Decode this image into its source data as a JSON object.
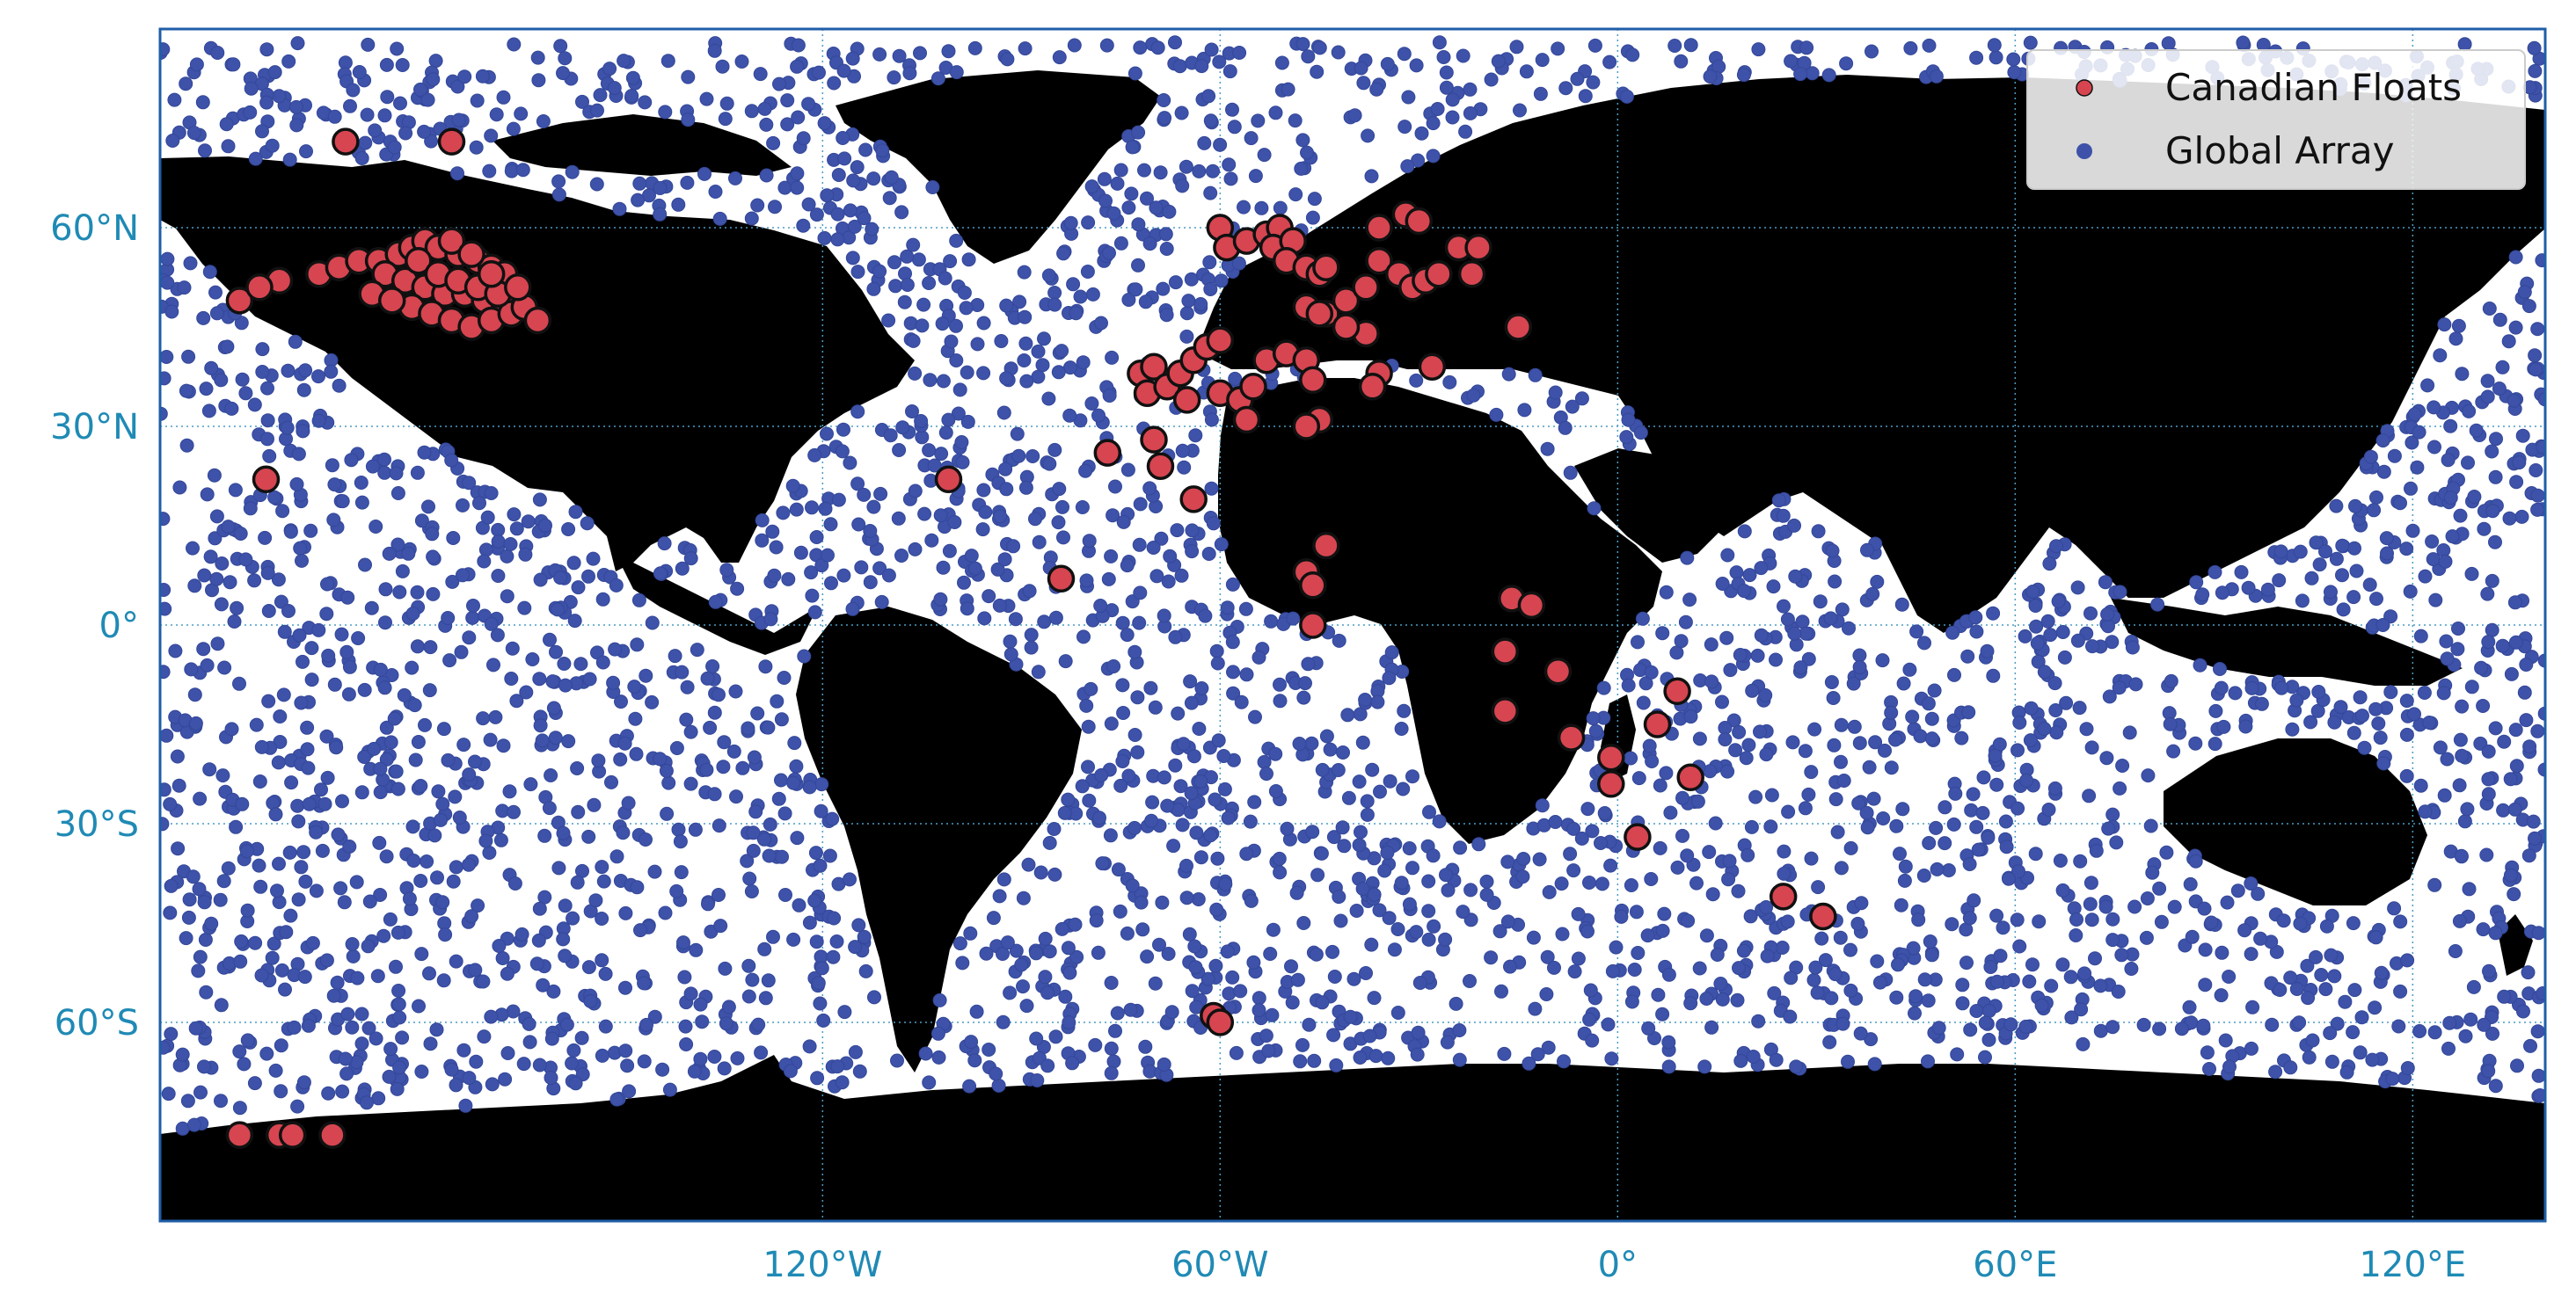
{
  "chart_data": {
    "type": "scatter",
    "projection": "plate-carree",
    "xlim": [
      -220,
      140
    ],
    "ylim": [
      -90,
      90
    ],
    "grid": true,
    "legend_position": "top-right",
    "x_tick_labels": [
      {
        "lon": -120,
        "label": "120°W"
      },
      {
        "lon": -60,
        "label": "60°W"
      },
      {
        "lon": 0,
        "label": "0°"
      },
      {
        "lon": 60,
        "label": "60°E"
      },
      {
        "lon": 120,
        "label": "120°E"
      }
    ],
    "y_tick_labels": [
      {
        "lat": 60,
        "label": "60°N"
      },
      {
        "lat": 30,
        "label": "30°N"
      },
      {
        "lat": 0,
        "label": "0°"
      },
      {
        "lat": -30,
        "label": "30°S"
      },
      {
        "lat": -60,
        "label": "60°S"
      }
    ],
    "colors": {
      "land": "#b3d9e6",
      "ocean": "#ffffff",
      "axis_frame": "#1f5ea8",
      "tick_label": "#1f8ab5",
      "grid": "#4a9cc4",
      "global": "#3d52a8",
      "canadian": "#d64550",
      "canadian_edge": "#111111"
    },
    "series": [
      {
        "name": "Canadian Floats",
        "points": [
          [
            -192,
            73
          ],
          [
            -176,
            73
          ],
          [
            -208,
            49
          ],
          [
            -202,
            52
          ],
          [
            -205,
            51
          ],
          [
            -196,
            53
          ],
          [
            -193,
            54
          ],
          [
            -190,
            55
          ],
          [
            -187,
            55
          ],
          [
            -184,
            56
          ],
          [
            -182,
            57
          ],
          [
            -180,
            58
          ],
          [
            -178,
            57
          ],
          [
            -175,
            56
          ],
          [
            -172,
            55
          ],
          [
            -170,
            54
          ],
          [
            -168,
            53
          ],
          [
            -186,
            53
          ],
          [
            -183,
            52
          ],
          [
            -180,
            51
          ],
          [
            -177,
            50
          ],
          [
            -174,
            50
          ],
          [
            -171,
            49
          ],
          [
            -168,
            48
          ],
          [
            -182,
            48
          ],
          [
            -179,
            47
          ],
          [
            -176,
            46
          ],
          [
            -173,
            45
          ],
          [
            -170,
            46
          ],
          [
            -167,
            47
          ],
          [
            -165,
            48
          ],
          [
            -163,
            46
          ],
          [
            -188,
            50
          ],
          [
            -185,
            49
          ],
          [
            -181,
            55
          ],
          [
            -178,
            53
          ],
          [
            -175,
            52
          ],
          [
            -172,
            51
          ],
          [
            -169,
            50
          ],
          [
            -166,
            51
          ],
          [
            -176,
            58
          ],
          [
            -173,
            56
          ],
          [
            -170,
            53
          ],
          [
            -204,
            22
          ],
          [
            -101,
            22
          ],
          [
            -84,
            7
          ],
          [
            -77,
            26
          ],
          [
            -72,
            38
          ],
          [
            -70,
            39
          ],
          [
            -71,
            35
          ],
          [
            -68,
            36
          ],
          [
            -66,
            38
          ],
          [
            -64,
            40
          ],
          [
            -62,
            42
          ],
          [
            -60,
            43
          ],
          [
            -65,
            34
          ],
          [
            -70,
            28
          ],
          [
            -69,
            24
          ],
          [
            -64,
            19
          ],
          [
            -60,
            35
          ],
          [
            -57,
            34
          ],
          [
            -55,
            36
          ],
          [
            -56,
            31
          ],
          [
            -53,
            40
          ],
          [
            -50,
            41
          ],
          [
            -47,
            40
          ],
          [
            -46,
            37
          ],
          [
            -45,
            31
          ],
          [
            -47,
            30
          ],
          [
            -60,
            60
          ],
          [
            -59,
            57
          ],
          [
            -56,
            58
          ],
          [
            -53,
            59
          ],
          [
            -51,
            60
          ],
          [
            -52,
            57
          ],
          [
            -49,
            58
          ],
          [
            -50,
            55
          ],
          [
            -47,
            54
          ],
          [
            -45,
            53
          ],
          [
            -44,
            54
          ],
          [
            -47,
            48
          ],
          [
            -44,
            47
          ],
          [
            -41,
            49
          ],
          [
            -38,
            51
          ],
          [
            -36,
            55
          ],
          [
            -33,
            53
          ],
          [
            -31,
            51
          ],
          [
            -29,
            52
          ],
          [
            -27,
            53
          ],
          [
            -24,
            57
          ],
          [
            -21,
            57
          ],
          [
            -22,
            53
          ],
          [
            -36,
            60
          ],
          [
            -32,
            62
          ],
          [
            -30,
            61
          ],
          [
            -38,
            44
          ],
          [
            -36,
            38
          ],
          [
            -37,
            36
          ],
          [
            -41,
            45
          ],
          [
            -45,
            47
          ],
          [
            -28,
            39
          ],
          [
            -15,
            45
          ],
          [
            -44,
            12
          ],
          [
            -47,
            8
          ],
          [
            -46,
            6
          ],
          [
            -46,
            0
          ],
          [
            -16,
            4
          ],
          [
            -13,
            3
          ],
          [
            -17,
            -4
          ],
          [
            -9,
            -7
          ],
          [
            -17,
            -13
          ],
          [
            -7,
            -17
          ],
          [
            -1,
            -20
          ],
          [
            -1,
            -24
          ],
          [
            3,
            -32
          ],
          [
            6,
            -15
          ],
          [
            9,
            -10
          ],
          [
            11,
            -23
          ],
          [
            25,
            -41
          ],
          [
            31,
            -44
          ],
          [
            -61,
            -59
          ],
          [
            -60,
            -60
          ],
          [
            -208,
            -77
          ],
          [
            -202,
            -77
          ],
          [
            -200,
            -77
          ],
          [
            -194,
            -77
          ]
        ]
      },
      {
        "name": "Global Array",
        "count": 3400
      }
    ]
  }
}
